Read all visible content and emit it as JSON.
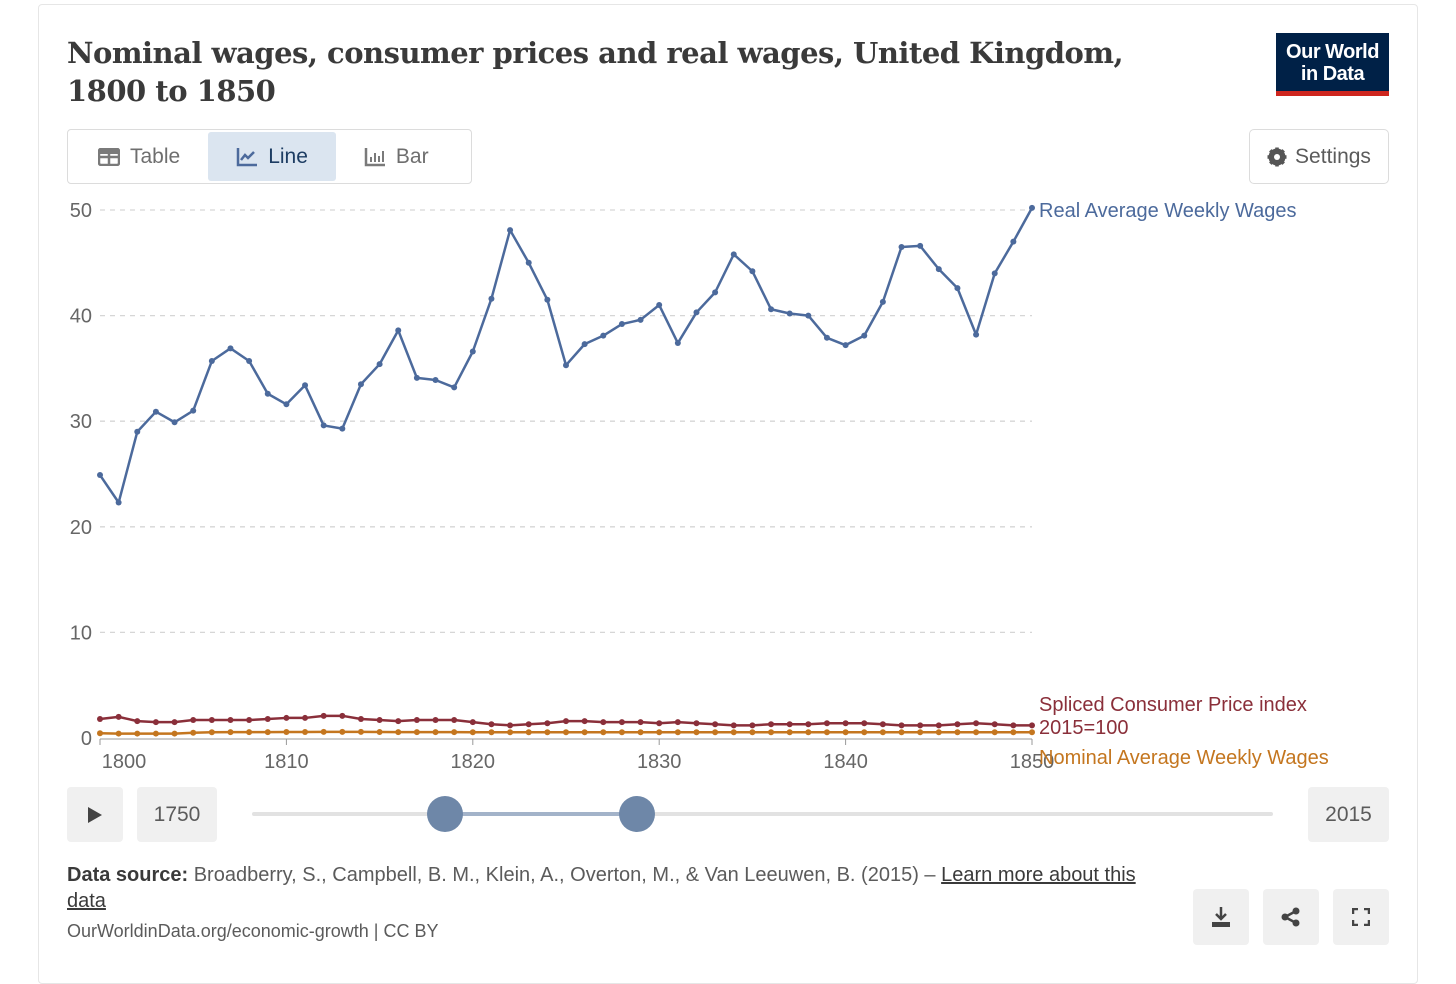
{
  "header": {
    "title": "Nominal wages, consumer prices and real wages, United Kingdom, 1800 to 1850",
    "logo": "Our World in Data"
  },
  "tabs": [
    {
      "label": "Table",
      "icon": "table-icon"
    },
    {
      "label": "Line",
      "icon": "line-chart-icon",
      "active": true
    },
    {
      "label": "Bar",
      "icon": "bar-chart-icon"
    }
  ],
  "settings_label": "Settings",
  "timeline": {
    "start_label": "1750",
    "end_label": "2015",
    "selected_start": 1800,
    "selected_end": 1850
  },
  "footer": {
    "source_label": "Data source:",
    "source_text": " Broadberry, S., Campbell, B. M., Klein, A., Overton, M., & Van Leeuwen, B. (2015) – ",
    "learn_more": "Learn more about this data",
    "url": "OurWorldinData.org/economic-growth | CC BY"
  },
  "chart_data": {
    "type": "line",
    "title": "Nominal wages, consumer prices and real wages, United Kingdom, 1800 to 1850",
    "xlim": [
      1800,
      1850
    ],
    "ylim": [
      0,
      50
    ],
    "xticks": [
      "1800",
      "1810",
      "1820",
      "1830",
      "1840",
      "1850"
    ],
    "yticks": [
      "0",
      "10",
      "20",
      "30",
      "40",
      "50"
    ],
    "grid": true,
    "x_start": 1800,
    "series": [
      {
        "name": "Real Average Weekly Wages",
        "color": "#4c6a9c",
        "values": [
          24.9,
          22.3,
          29.0,
          30.9,
          29.9,
          31.0,
          35.7,
          36.9,
          35.7,
          32.6,
          31.6,
          33.4,
          29.6,
          29.3,
          33.5,
          35.4,
          38.6,
          34.1,
          33.9,
          33.2,
          36.6,
          41.6,
          48.1,
          45.0,
          41.5,
          35.3,
          37.3,
          38.1,
          39.2,
          39.6,
          41.0,
          37.4,
          40.3,
          42.2,
          45.8,
          44.2,
          40.6,
          40.2,
          40.0,
          37.9,
          37.2,
          38.1,
          41.3,
          46.5,
          46.6,
          44.4,
          42.6,
          38.2,
          44.0,
          47.0,
          50.2
        ]
      },
      {
        "name": "Spliced Consumer Price index",
        "name2": "2015=100",
        "color": "#8a2f3a",
        "values": [
          1.8,
          2.0,
          1.6,
          1.5,
          1.5,
          1.7,
          1.7,
          1.7,
          1.7,
          1.8,
          1.9,
          1.9,
          2.1,
          2.1,
          1.8,
          1.7,
          1.6,
          1.7,
          1.7,
          1.7,
          1.5,
          1.3,
          1.2,
          1.3,
          1.4,
          1.6,
          1.6,
          1.5,
          1.5,
          1.5,
          1.4,
          1.5,
          1.4,
          1.3,
          1.2,
          1.2,
          1.3,
          1.3,
          1.3,
          1.4,
          1.4,
          1.4,
          1.3,
          1.2,
          1.2,
          1.2,
          1.3,
          1.4,
          1.3,
          1.2,
          1.2
        ]
      },
      {
        "name": "Nominal Average Weekly Wages",
        "color": "#c4761f",
        "values": [
          0.45,
          0.42,
          0.42,
          0.42,
          0.42,
          0.5,
          0.55,
          0.56,
          0.56,
          0.56,
          0.57,
          0.57,
          0.58,
          0.58,
          0.58,
          0.57,
          0.56,
          0.56,
          0.56,
          0.56,
          0.55,
          0.55,
          0.55,
          0.55,
          0.55,
          0.55,
          0.55,
          0.55,
          0.55,
          0.55,
          0.55,
          0.55,
          0.55,
          0.55,
          0.55,
          0.55,
          0.55,
          0.55,
          0.55,
          0.55,
          0.55,
          0.55,
          0.55,
          0.55,
          0.55,
          0.55,
          0.55,
          0.55,
          0.55,
          0.55,
          0.55
        ]
      }
    ]
  }
}
